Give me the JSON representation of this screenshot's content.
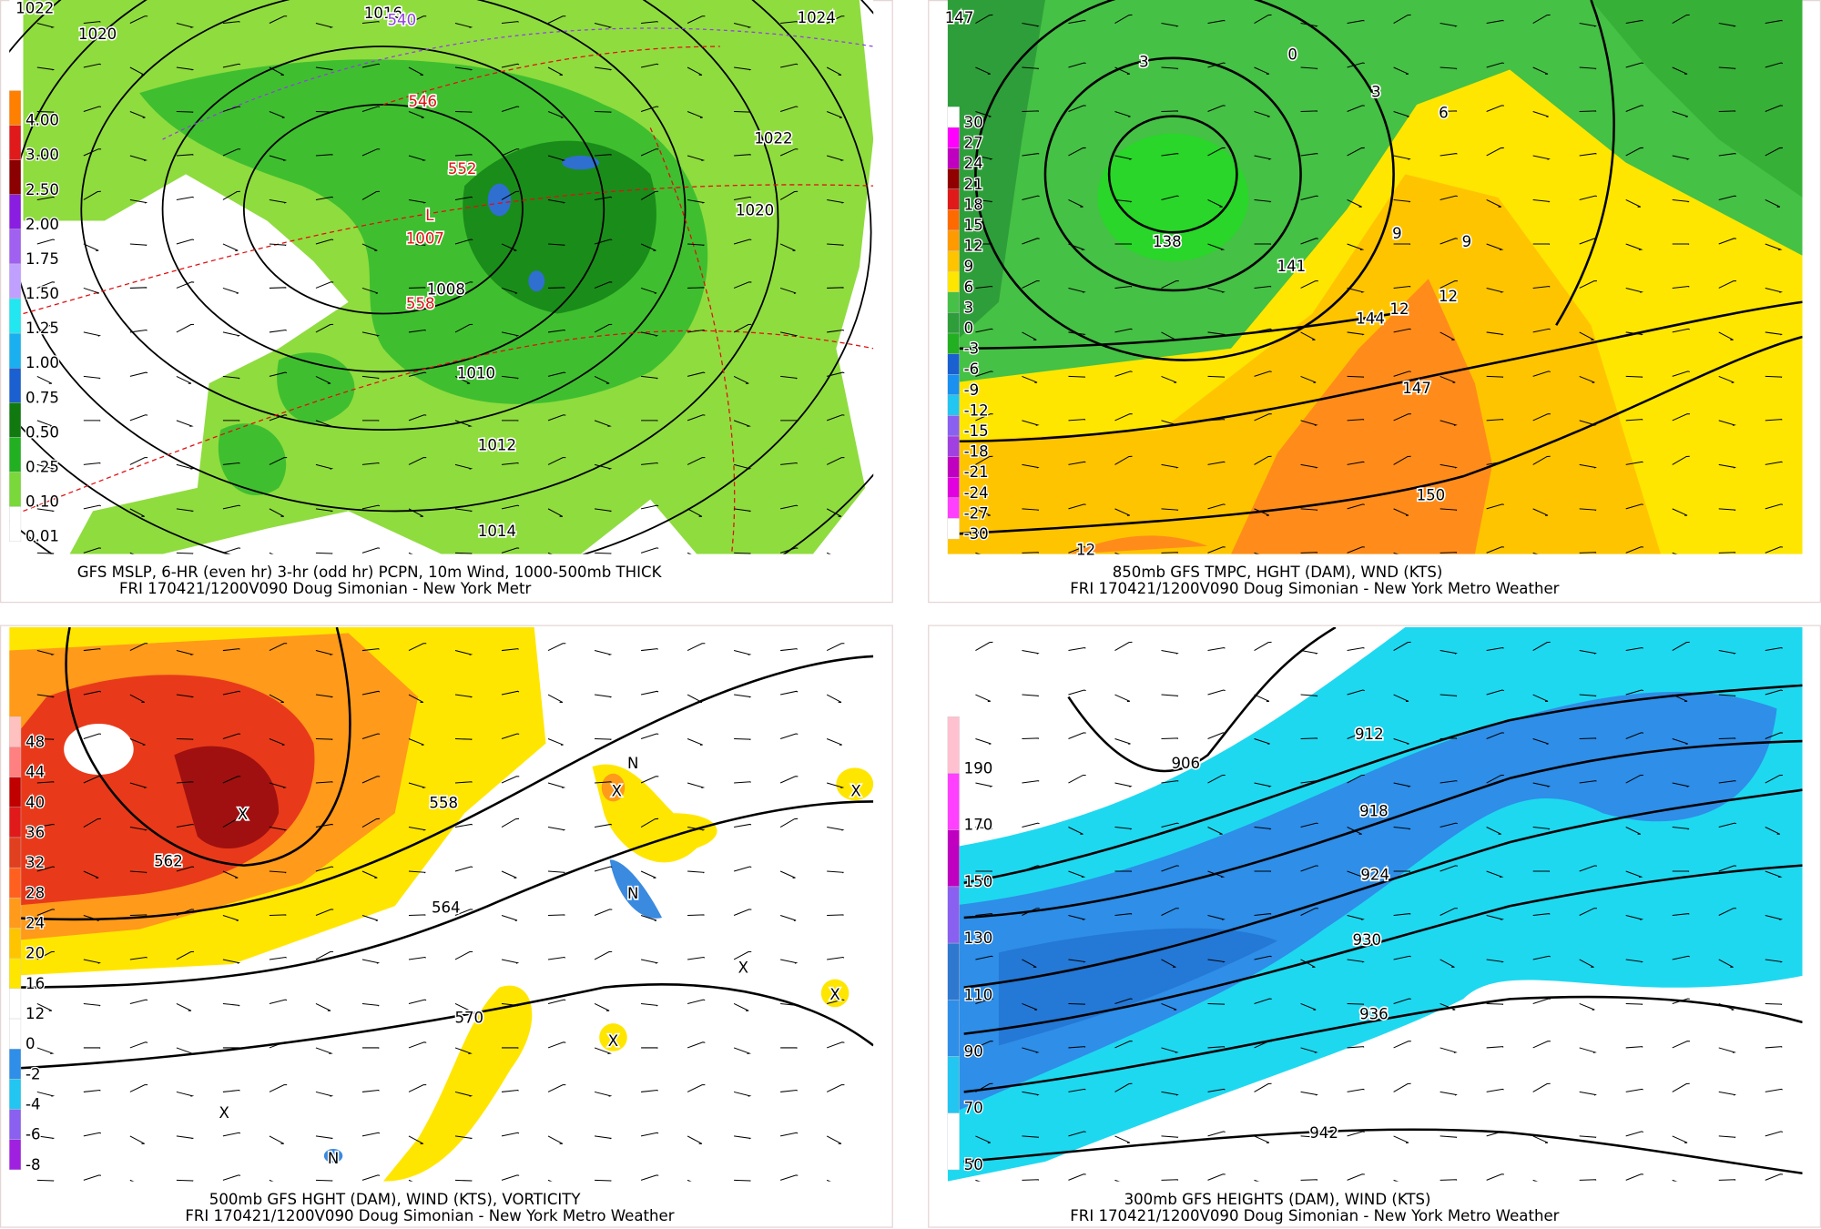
{
  "panels": [
    {
      "caption": "GFS MSLP, 6-HR (even hr) 3-hr (odd hr) PCPN, 10m Wind, 1000-500mb THICK",
      "subcaption": "FRI 170421/1200V090 Doug Simonian - New York Metr",
      "legend": [
        "4.00",
        "3.00",
        "2.50",
        "2.00",
        "1.75",
        "1.50",
        "1.25",
        "1.00",
        "0.75",
        "0.50",
        "0.25",
        "0.10",
        "0.01"
      ],
      "labels": [
        "1022",
        "1020",
        "1016",
        "1024",
        "540",
        "546",
        "552",
        "558",
        "1022",
        "1020",
        "1008",
        "1007",
        "1010",
        "1012",
        "1014",
        "L"
      ]
    },
    {
      "caption": "850mb GFS TMPC, HGHT (DAM), WND (KTS)",
      "subcaption": "FRI 170421/1200V090 Doug Simonian - New York Metro Weather",
      "legend": [
        "30",
        "27",
        "24",
        "21",
        "18",
        "15",
        "12",
        "9",
        "6",
        "3",
        "0",
        "-3",
        "-6",
        "-9",
        "-12",
        "-15",
        "-18",
        "-21",
        "-24",
        "-27",
        "-30"
      ],
      "labels": [
        "147",
        "3",
        "0",
        "3",
        "6",
        "9",
        "9",
        "138",
        "141",
        "144",
        "12",
        "12",
        "147",
        "150",
        "12"
      ]
    },
    {
      "caption": "500mb GFS HGHT (DAM), WIND (KTS), VORTICITY",
      "subcaption": "FRI 170421/1200V090 Doug Simonian - New York Metro Weather",
      "legend": [
        "48",
        "44",
        "40",
        "36",
        "32",
        "28",
        "24",
        "20",
        "16",
        "12",
        "0",
        "-2",
        "-4",
        "-6",
        "-8"
      ],
      "labels": [
        "558",
        "562",
        "564",
        "570",
        "X",
        "X",
        "X",
        "X",
        "X",
        "X",
        "X",
        "N",
        "N",
        "N"
      ]
    },
    {
      "caption": "300mb GFS HEIGHTS (DAM), WIND (KTS)",
      "subcaption": "FRI 170421/1200V090 Doug Simonian - New York Metro Weather",
      "legend": [
        "190",
        "170",
        "150",
        "130",
        "110",
        "90",
        "70",
        "50"
      ],
      "labels": [
        "912",
        "906",
        "918",
        "924",
        "930",
        "936",
        "942"
      ]
    }
  ]
}
